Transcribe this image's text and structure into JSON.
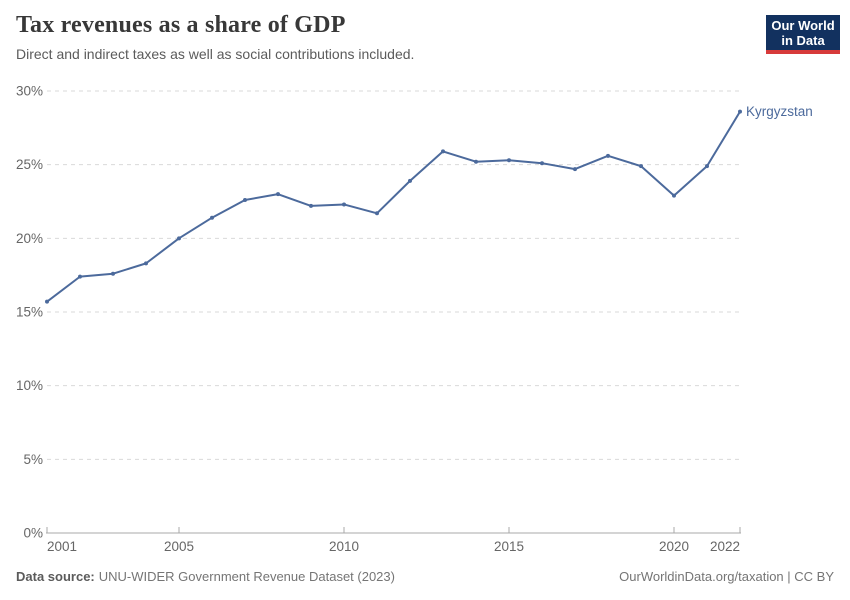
{
  "header": {
    "title": "Tax revenues as a share of GDP",
    "subtitle": "Direct and indirect taxes as well as social contributions included.",
    "logo_line1": "Our World",
    "logo_line2": "in Data"
  },
  "chart_data": {
    "type": "line",
    "title": "Tax revenues as a share of GDP",
    "xlabel": "",
    "ylabel": "",
    "x": [
      2001,
      2002,
      2003,
      2004,
      2005,
      2006,
      2007,
      2008,
      2009,
      2010,
      2011,
      2012,
      2013,
      2014,
      2015,
      2016,
      2017,
      2018,
      2019,
      2020,
      2021,
      2022
    ],
    "series": [
      {
        "name": "Kyrgyzstan",
        "color": "#4C6A9C",
        "values": [
          15.7,
          17.4,
          17.6,
          18.3,
          20.0,
          21.4,
          22.6,
          23.0,
          22.2,
          22.3,
          21.7,
          23.9,
          25.9,
          25.2,
          25.3,
          25.1,
          24.7,
          25.6,
          24.9,
          22.9,
          24.9,
          28.6
        ]
      }
    ],
    "xlim": [
      2001,
      2022
    ],
    "ylim": [
      0,
      30
    ],
    "ytick_values": [
      0,
      5,
      10,
      15,
      20,
      25,
      30
    ],
    "ytick_labels": [
      "0%",
      "5%",
      "10%",
      "15%",
      "20%",
      "25%",
      "30%"
    ],
    "xtick_values": [
      2001,
      2005,
      2010,
      2015,
      2020,
      2022
    ],
    "xtick_labels": [
      "2001",
      "2005",
      "2010",
      "2015",
      "2020",
      "2022"
    ],
    "grid": "horizontal-dashed",
    "legend_position": "line-end-label"
  },
  "footer": {
    "source_label": "Data source:",
    "source_value": "UNU-WIDER Government Revenue Dataset (2023)",
    "credit": "OurWorldinData.org/taxation | CC BY"
  },
  "colors": {
    "line": "#4C6A9C",
    "grid": "#d9d9d9",
    "axis": "#a8a8a8",
    "tick_text": "#666666",
    "title_text": "#383838",
    "subtitle_text": "#5b5b5b",
    "footer_text": "#757575",
    "logo_bg": "#12315f",
    "logo_red": "#d73a3a"
  }
}
